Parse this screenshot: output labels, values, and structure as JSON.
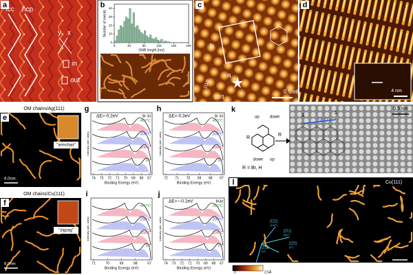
{
  "panels": {
    "a": {
      "label": "a",
      "texts": [
        "fcc",
        "hcp",
        "y",
        "x",
        "in",
        "out"
      ]
    },
    "b": {
      "label": "b",
      "histogram": {
        "xlabel": "GNR length [nm]",
        "ylabel": "Number of events",
        "bins": [
          0,
          5,
          10,
          15,
          20,
          25,
          30,
          35,
          40,
          45,
          50,
          55,
          60,
          65,
          70,
          75,
          80,
          85,
          90,
          95,
          100,
          105,
          110,
          115,
          120,
          125,
          130,
          135,
          140,
          145,
          150
        ],
        "counts": [
          2,
          8,
          15,
          20,
          18,
          25,
          30,
          28,
          40,
          22,
          35,
          18,
          20,
          15,
          12,
          10,
          14,
          8,
          6,
          9,
          5,
          4,
          6,
          3,
          2,
          4,
          1,
          2,
          1,
          1
        ],
        "color": "#8fb8a0",
        "xlim": [
          0,
          200
        ],
        "xticks": [
          0,
          40,
          80,
          120,
          160,
          200
        ],
        "ylim": [
          0,
          45
        ],
        "yticks": [
          0,
          10,
          20,
          30,
          40
        ]
      }
    },
    "c": {
      "label": "c",
      "texts": [
        "b",
        "a",
        "0.5nm",
        "[112̄]",
        "[1̄10]"
      ]
    },
    "d": {
      "label": "d",
      "texts": [
        "4 nm"
      ]
    },
    "e": {
      "label": "e",
      "title": "OM chains/Ag(111)",
      "texts": [
        "\"armchair\"",
        "6.0nm"
      ]
    },
    "f": {
      "label": "f",
      "title": "OM chains/Cu(111)",
      "texts": [
        "\"zigzag\"",
        "6.0nm"
      ]
    },
    "g": {
      "label": "g",
      "delta": "ΔE=-0.2eV",
      "element": "Br 3d",
      "temps": [
        "400°C",
        "300°C",
        "200°C",
        "RT"
      ],
      "xlabel": "Binding Energy (eV)",
      "ylabel": "Intensity (arb. units)",
      "xticks": [
        74,
        73,
        72,
        71,
        70,
        69,
        68,
        67
      ]
    },
    "h": {
      "label": "h",
      "delta": "ΔE=-0.3eV",
      "element": "Br 3d",
      "temps": [
        "400°C",
        "300°C",
        "200°C",
        "RT"
      ],
      "xlabel": "Binding Energy (eV)",
      "ylabel": "Intensity (arb. units)",
      "xticks": [
        72,
        71,
        70,
        69,
        68,
        67
      ]
    },
    "i": {
      "label": "i",
      "temps": [
        "400°C",
        "250°C",
        "150°C",
        "RT"
      ],
      "xlabel": "Binding Energy (eV)",
      "ylabel": "Intensity (arb. units)",
      "xticks": [
        71,
        70,
        69,
        68,
        67
      ]
    },
    "j": {
      "label": "j",
      "delta": "ΔE=~-0.2eV",
      "element": "Br3d",
      "temps": [
        "300°C",
        "200°C",
        "100°C",
        "RT"
      ],
      "xlabel": "Binding Energy (eV)",
      "ylabel": "Intensity (arb. units)",
      "xticks": [
        74,
        73,
        72,
        71,
        70,
        69,
        68,
        67
      ]
    },
    "k": {
      "label": "k",
      "texts": [
        "up",
        "down",
        "down",
        "up",
        "R",
        "R",
        "R = Br, H",
        "3",
        "1",
        "(3,1)",
        "0.5 nm"
      ]
    },
    "l": {
      "label": "l",
      "texts": [
        "Cu(111)",
        "[1̄1̄2]",
        "(120°)",
        "[2̄11]",
        "(60°)",
        "[2̄11]",
        "(0°)",
        "[1̄2̄1]",
        "(0°)",
        "0",
        "2.5Å"
      ]
    }
  }
}
